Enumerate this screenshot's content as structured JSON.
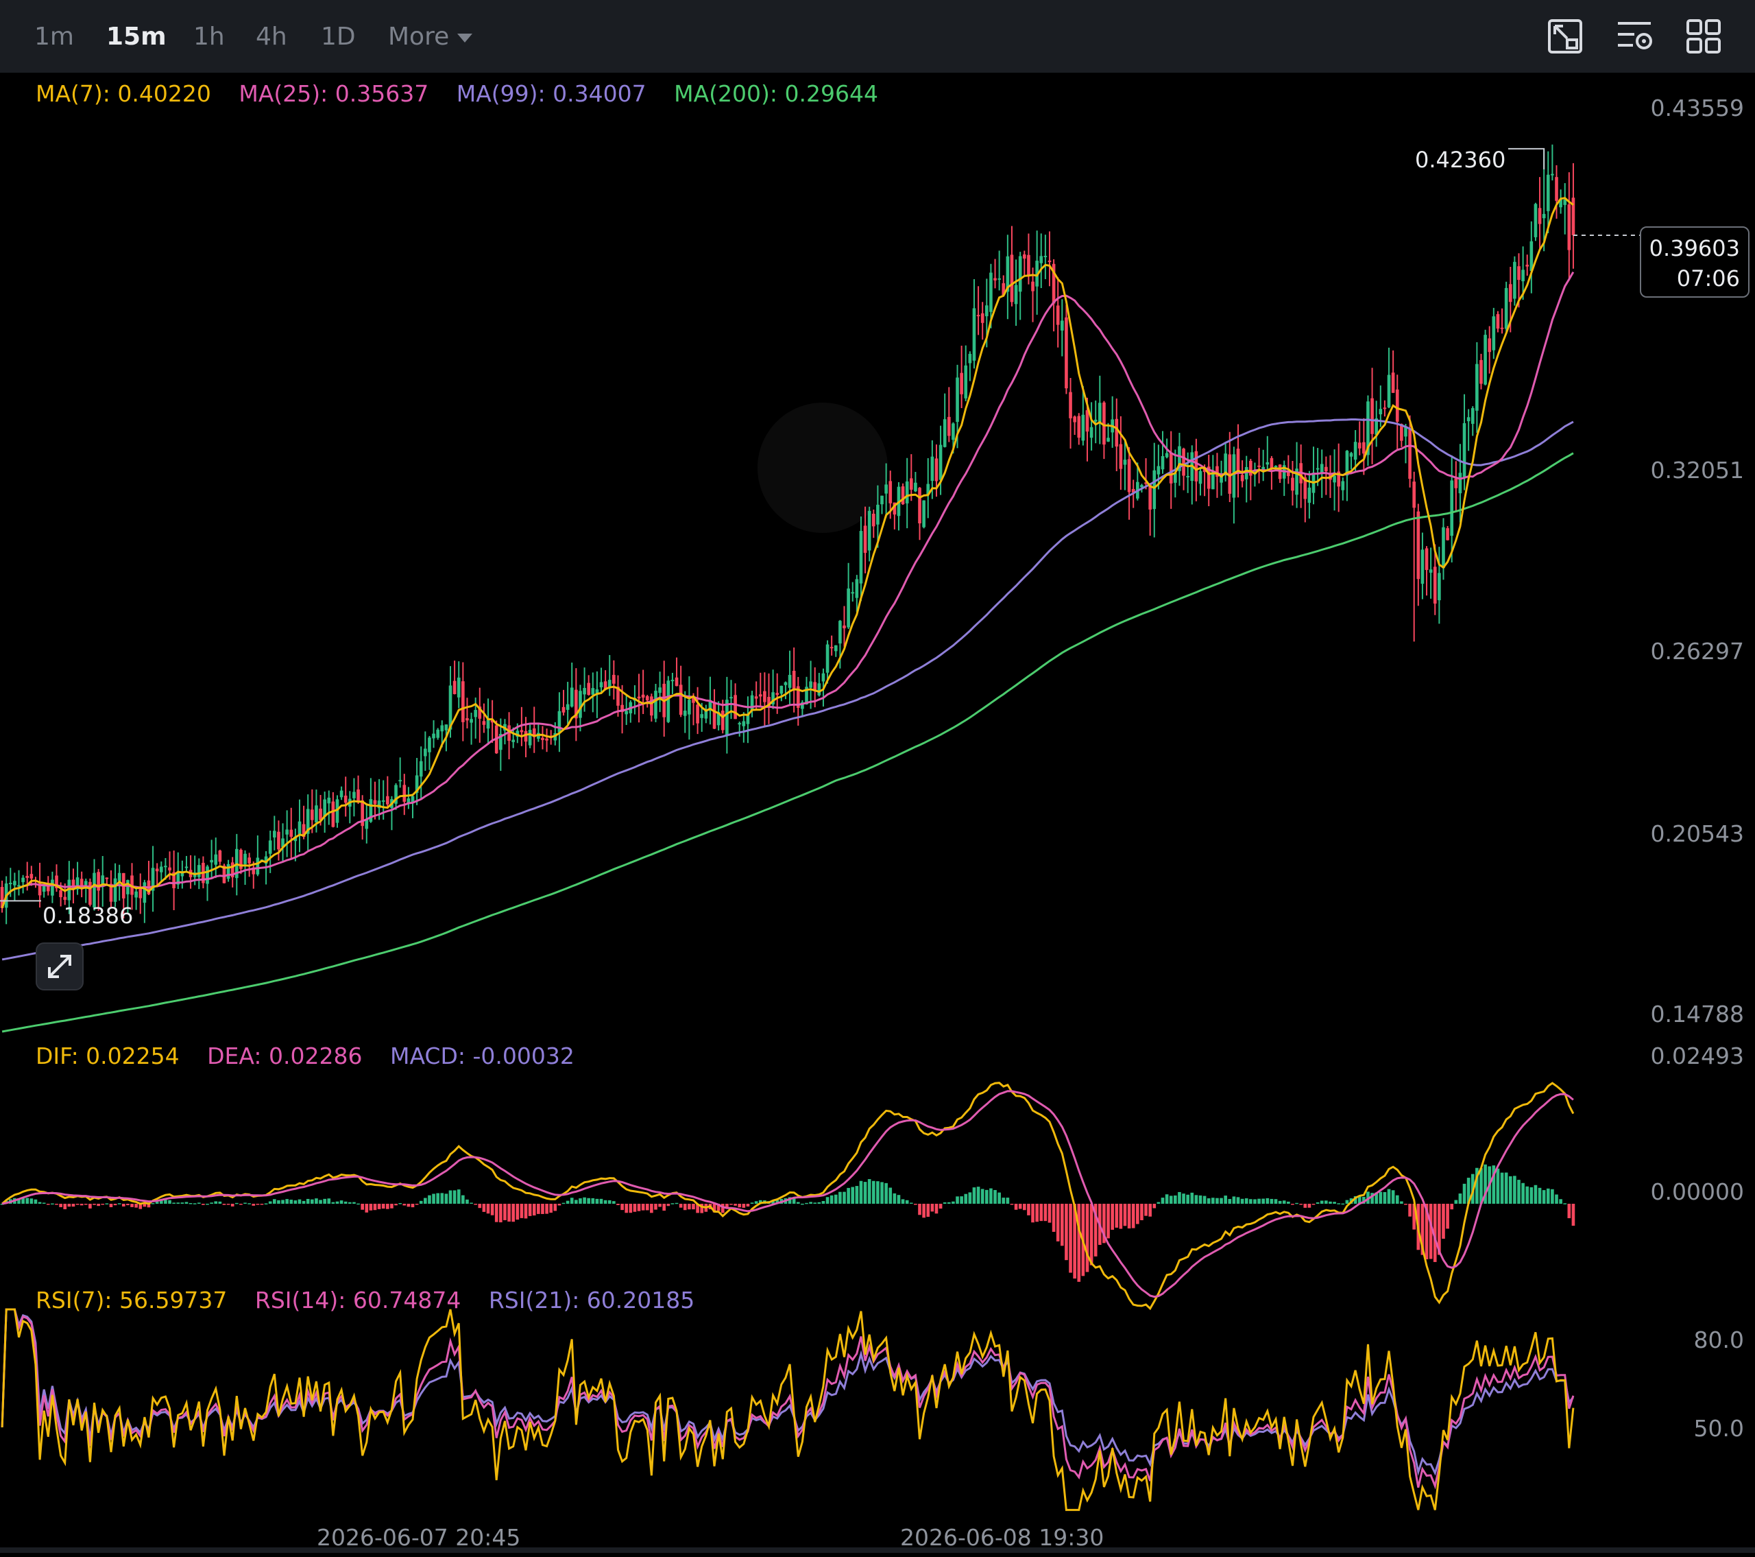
{
  "toolbar": {
    "timeframes": [
      "1m",
      "15m",
      "1h",
      "4h",
      "1D"
    ],
    "active_timeframe": "15m",
    "more_label": "More",
    "tools": [
      "chart-settings-icon",
      "indicator-settings-icon",
      "layout-grid-icon"
    ]
  },
  "legends": {
    "ma": [
      {
        "label": "MA(7): 0.40220",
        "color": "#f0b90b"
      },
      {
        "label": "MA(25): 0.35637",
        "color": "#e05bb0"
      },
      {
        "label": "MA(99): 0.34007",
        "color": "#8f7fd8"
      },
      {
        "label": "MA(200): 0.29644",
        "color": "#4ccc6e"
      }
    ],
    "macd": [
      {
        "label": "DIF: 0.02254",
        "color": "#f0b90b"
      },
      {
        "label": "DEA: 0.02286",
        "color": "#e05bb0"
      },
      {
        "label": "MACD: -0.00032",
        "color": "#8f7fd8"
      }
    ],
    "rsi": [
      {
        "label": "RSI(7): 56.59737",
        "color": "#f0b90b"
      },
      {
        "label": "RSI(14): 60.74874",
        "color": "#e05bb0"
      },
      {
        "label": "RSI(21): 60.20185",
        "color": "#8f7fd8"
      }
    ]
  },
  "price_axis": [
    "0.43559",
    "0.32051",
    "0.26297",
    "0.20543",
    "0.14788"
  ],
  "macd_axis": [
    "0.02493",
    "0.00000"
  ],
  "rsi_axis": [
    "80.0",
    "50.0"
  ],
  "time_axis": [
    "2026-06-07 20:45",
    "2026-06-08 19:30"
  ],
  "high_label": "0.42360",
  "low_label": "0.18386",
  "current": {
    "price": "0.39603",
    "countdown": "07:06"
  },
  "colors": {
    "up": "#2ebd85",
    "down": "#f6465d",
    "bg": "#000000",
    "toolbar": "#1a1d22"
  },
  "chart_data": {
    "type": "candlestick",
    "price_range": [
      0.14788,
      0.43559
    ],
    "ma_series": [
      {
        "name": "MA(7)",
        "current": 0.4022
      },
      {
        "name": "MA(25)",
        "current": 0.35637
      },
      {
        "name": "MA(99)",
        "current": 0.34007
      },
      {
        "name": "MA(200)",
        "current": 0.29644
      }
    ],
    "close_path": [
      [
        0,
        0.187
      ],
      [
        15,
        0.186
      ],
      [
        30,
        0.189
      ],
      [
        45,
        0.192
      ],
      [
        60,
        0.196
      ],
      [
        70,
        0.206
      ],
      [
        80,
        0.214
      ],
      [
        92,
        0.212
      ],
      [
        100,
        0.226
      ],
      [
        108,
        0.251
      ],
      [
        114,
        0.238
      ],
      [
        122,
        0.235
      ],
      [
        130,
        0.24
      ],
      [
        138,
        0.248
      ],
      [
        146,
        0.25
      ],
      [
        154,
        0.249
      ],
      [
        162,
        0.248
      ],
      [
        168,
        0.243
      ],
      [
        174,
        0.244
      ],
      [
        182,
        0.249
      ],
      [
        190,
        0.251
      ],
      [
        198,
        0.262
      ],
      [
        206,
        0.3
      ],
      [
        214,
        0.316
      ],
      [
        220,
        0.309
      ],
      [
        226,
        0.339
      ],
      [
        232,
        0.366
      ],
      [
        238,
        0.384
      ],
      [
        242,
        0.381
      ],
      [
        246,
        0.385
      ],
      [
        250,
        0.386
      ],
      [
        253,
        0.365
      ],
      [
        256,
        0.335
      ],
      [
        262,
        0.34
      ],
      [
        268,
        0.321
      ],
      [
        274,
        0.315
      ],
      [
        280,
        0.322
      ],
      [
        290,
        0.32
      ],
      [
        300,
        0.318
      ],
      [
        310,
        0.317
      ],
      [
        318,
        0.318
      ],
      [
        324,
        0.331
      ],
      [
        330,
        0.348
      ],
      [
        335,
        0.333
      ],
      [
        338,
        0.291
      ],
      [
        342,
        0.284
      ],
      [
        346,
        0.311
      ],
      [
        352,
        0.352
      ],
      [
        358,
        0.374
      ],
      [
        364,
        0.393
      ],
      [
        368,
        0.409
      ],
      [
        372,
        0.411
      ],
      [
        374,
        0.396
      ]
    ],
    "price_high": 0.4236,
    "price_low": 0.18386,
    "current_price": 0.39603,
    "macd": {
      "dif": 0.02254,
      "dea": 0.02286,
      "macd": -0.00032,
      "range": [
        -0.008,
        0.02493
      ]
    },
    "rsi": {
      "rsi7": 56.59737,
      "rsi14": 60.74874,
      "rsi21": 60.20185,
      "ticks": [
        80.0,
        50.0
      ]
    },
    "x_labels": [
      "2026-06-07 20:45",
      "2026-06-08 19:30"
    ]
  }
}
